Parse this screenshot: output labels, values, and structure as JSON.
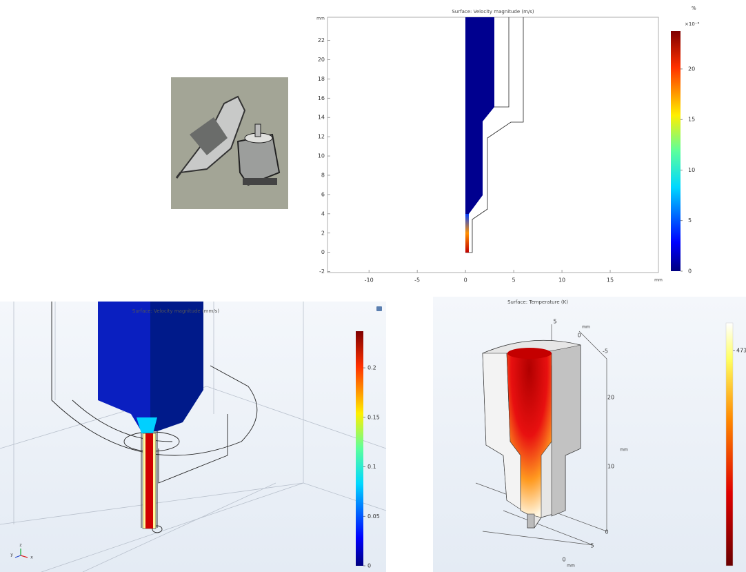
{
  "plot2d": {
    "title": "Surface: Velocity magnitude (m/s)",
    "x_unit": "mm",
    "y_unit": "mm",
    "xlim": [
      -14.3,
      20
    ],
    "ylim": [
      -2.1,
      24.4
    ],
    "xticks": [
      -10,
      -5,
      0,
      5,
      10,
      15
    ],
    "yticks": [
      -2,
      0,
      2,
      4,
      6,
      8,
      10,
      12,
      14,
      16,
      18,
      20,
      22
    ],
    "corner_label": "%",
    "colorbar": {
      "multiplier": "×10⁻⁶",
      "lim": [
        0,
        23.75
      ],
      "ticks": [
        0,
        5,
        10,
        15,
        20
      ]
    }
  },
  "plot3d_velocity": {
    "title": "Surface: Velocity magnitude (mm/s)",
    "axis_labels": [
      "z",
      "y",
      "x"
    ],
    "colorbar": {
      "lim": [
        0,
        0.237
      ],
      "ticks": [
        0,
        0.05,
        0.1,
        0.15,
        0.2
      ]
    }
  },
  "plot3d_temperature": {
    "title": "Surface: Temperature (K)",
    "axis_labels": [
      "5",
      "mm",
      "0",
      "-5",
      "20",
      "mm",
      "10",
      "0",
      "5",
      "0",
      "mm"
    ],
    "colorbar": {
      "lim": [
        293,
        496
      ],
      "ticks": [
        473
      ]
    }
  }
}
